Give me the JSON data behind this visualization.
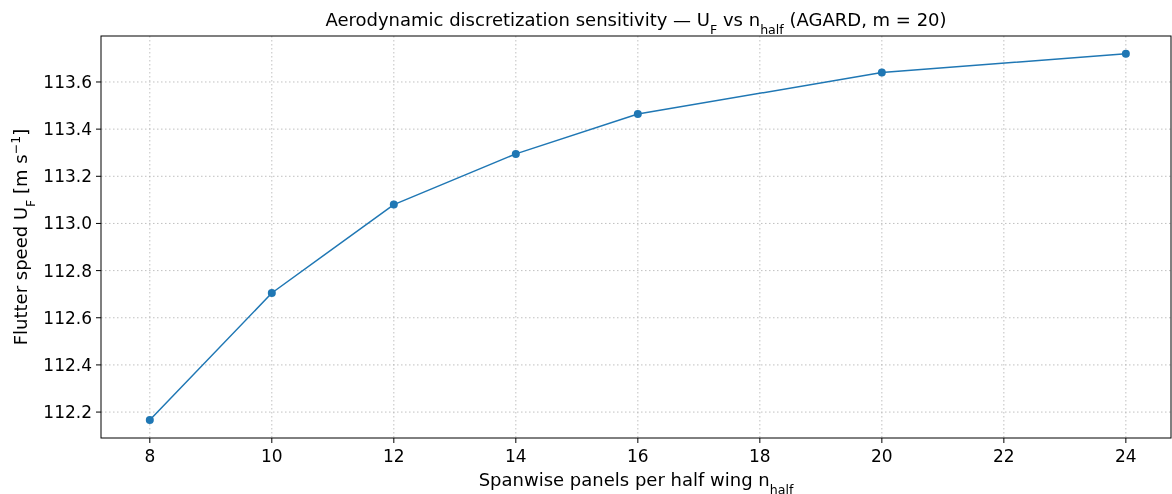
{
  "chart_data": {
    "type": "line",
    "title": "Aerodynamic discretization sensitivity — U$_{F}$ vs n$_{half}$ (AGARD, m = 20)",
    "xlabel": "Spanwise panels per half wing n$_{half}$",
    "ylabel": "Flutter speed U$_{F}$ [m s$^{−1}$]",
    "x": [
      8,
      10,
      12,
      14,
      16,
      20,
      24
    ],
    "series": [
      {
        "color": "#1f77b4",
        "values": [
          112.166,
          112.705,
          113.08,
          113.295,
          113.464,
          113.64,
          113.72
        ]
      }
    ],
    "xlim": [
      7.2,
      24.74
    ],
    "ylim": [
      112.09,
      113.795
    ],
    "xticks": [
      8,
      10,
      12,
      14,
      16,
      18,
      20,
      22,
      24
    ],
    "yticks": [
      112.2,
      112.4,
      112.6,
      112.8,
      {
        "value": 113,
        "label": "113.0"
      },
      113.2,
      113.4,
      113.6
    ],
    "grid": true,
    "marker": "circle",
    "line_style": "solid"
  }
}
